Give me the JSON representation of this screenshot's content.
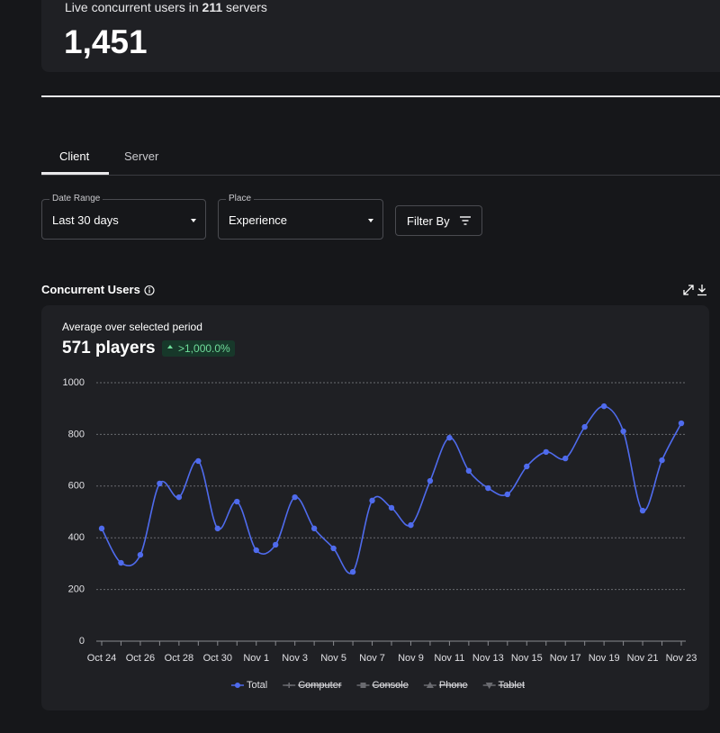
{
  "header": {
    "live_prefix": "Live concurrent users in",
    "server_count": "211",
    "live_suffix": "servers",
    "live_users": "1,451"
  },
  "tabs": [
    "Client",
    "Server"
  ],
  "filters": {
    "date_range": {
      "label": "Date Range",
      "value": "Last 30 days"
    },
    "place": {
      "label": "Place",
      "value": "Experience"
    },
    "filter_by": "Filter By"
  },
  "section_title": "Concurrent Users",
  "summary": {
    "caption": "Average over selected period",
    "value": "571 players",
    "change": ">1,000.0%"
  },
  "chart_data": {
    "type": "line",
    "categories": [
      "Oct 24",
      null,
      "Oct 26",
      null,
      "Oct 28",
      null,
      "Oct 30",
      null,
      "Nov 1",
      null,
      "Nov 3",
      null,
      "Nov 5",
      null,
      "Nov 7",
      null,
      "Nov 9",
      null,
      "Nov 11",
      null,
      "Nov 13",
      null,
      "Nov 15",
      null,
      "Nov 17",
      null,
      "Nov 19",
      null,
      "Nov 21",
      null,
      "Nov 23"
    ],
    "series": [
      {
        "name": "Total",
        "color": "#4f6bed",
        "values": [
          436,
          303,
          334,
          610,
          557,
          697,
          436,
          540,
          352,
          373,
          557,
          436,
          359,
          268,
          544,
          516,
          449,
          620,
          787,
          659,
          592,
          568,
          676,
          732,
          707,
          829,
          909,
          812,
          505,
          700,
          843
        ]
      }
    ],
    "legend_disabled": [
      "Computer",
      "Console",
      "Phone",
      "Tablet"
    ],
    "ylim": [
      0,
      1000
    ],
    "yticks": [
      0,
      200,
      400,
      600,
      800,
      1000
    ],
    "grid": true
  }
}
